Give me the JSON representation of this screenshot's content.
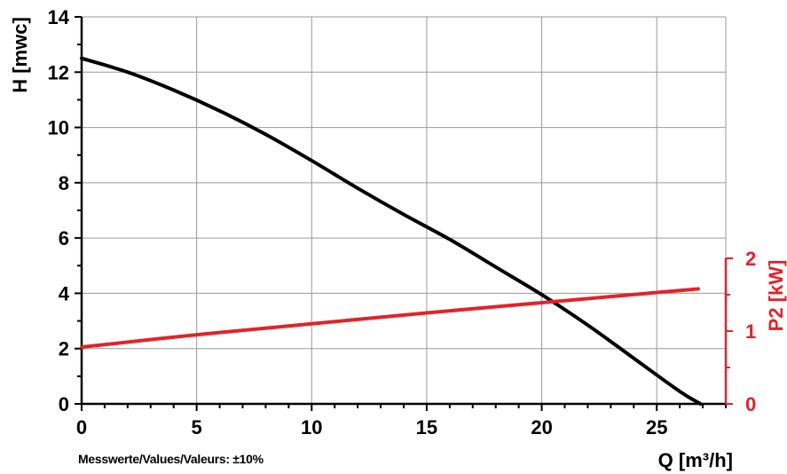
{
  "chart_data": {
    "type": "line",
    "title": "",
    "xlabel": "Q [m³/h]",
    "ylabel": "H [mwc]",
    "y2label": "P2 [kW]",
    "xlim": [
      0,
      28
    ],
    "ylim": [
      0,
      14
    ],
    "y2lim": [
      0,
      2
    ],
    "x_ticks": [
      0,
      5,
      10,
      15,
      20,
      25
    ],
    "y_ticks": [
      0,
      2,
      4,
      6,
      8,
      10,
      12,
      14
    ],
    "y2_ticks": [
      0,
      1,
      2
    ],
    "grid": true,
    "colors": {
      "h_curve": "#000000",
      "p2_curve": "#e0242a",
      "grid": "#9a9a9a",
      "right_axis": "#e0242a"
    },
    "series": [
      {
        "axis": "left",
        "x": [
          0,
          2,
          4,
          6,
          8,
          10,
          12,
          14,
          16,
          18,
          20,
          22,
          24,
          26,
          26.9
        ],
        "values": [
          12.5,
          12.0,
          11.35,
          10.6,
          9.75,
          8.8,
          7.8,
          6.85,
          5.95,
          4.95,
          3.95,
          2.85,
          1.65,
          0.45,
          0.0
        ]
      },
      {
        "axis": "right",
        "x": [
          0,
          5,
          10,
          15,
          20,
          26.8
        ],
        "values": [
          0.78,
          0.95,
          1.1,
          1.25,
          1.39,
          1.58
        ]
      }
    ],
    "annotation": "Messwerte/Values/Valeurs: ±10%"
  }
}
